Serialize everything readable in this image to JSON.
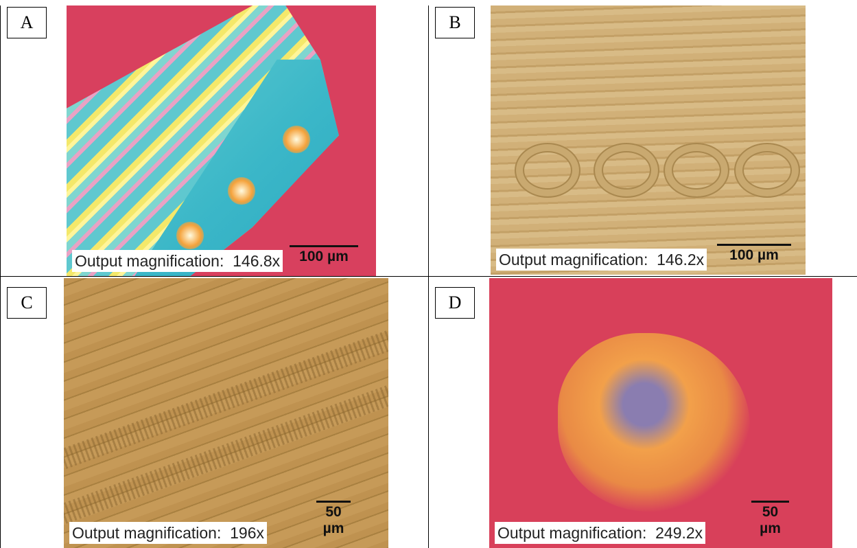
{
  "panels": [
    {
      "label": "A",
      "magnification": "Output magnification:  146.8x",
      "scale_bar": "100 µm"
    },
    {
      "label": "B",
      "magnification": "Output magnification:  146.2x",
      "scale_bar": "100 µm"
    },
    {
      "label": "C",
      "magnification": "Output magnification:  196x",
      "scale_bar": "50 µm"
    },
    {
      "label": "D",
      "magnification": "Output magnification:  249.2x",
      "scale_bar": "50 µm"
    }
  ]
}
